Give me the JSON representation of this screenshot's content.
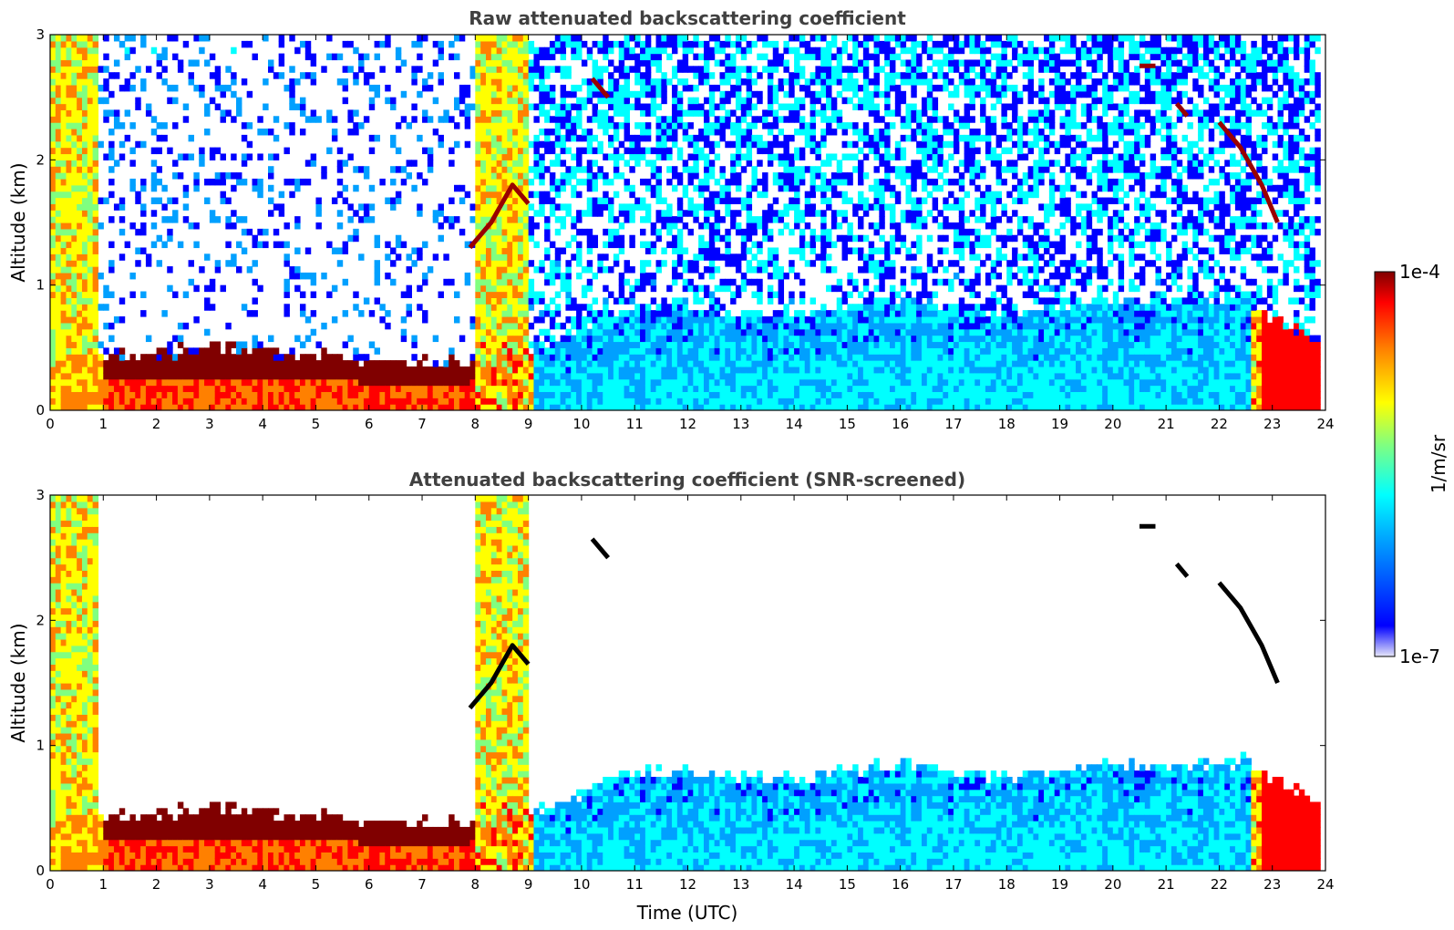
{
  "chart_data": [
    {
      "type": "heatmap",
      "title": "Raw attenuated backscattering coefficient",
      "xlabel": "",
      "ylabel": "Altitude (km)",
      "xlim": [
        0,
        24
      ],
      "ylim": [
        0,
        3
      ],
      "xticks": [
        "0",
        "1",
        "2",
        "3",
        "4",
        "5",
        "6",
        "7",
        "8",
        "9",
        "10",
        "11",
        "12",
        "13",
        "14",
        "15",
        "16",
        "17",
        "18",
        "19",
        "20",
        "21",
        "22",
        "23",
        "24"
      ],
      "yticks": [
        "0",
        "1",
        "2",
        "3"
      ],
      "screened": false,
      "boundary_layer_top_km": {
        "t": [
          0,
          0.7,
          1,
          2,
          3,
          4,
          5,
          6,
          7,
          7.9,
          8.2,
          9,
          10,
          10.5,
          11,
          12,
          13,
          14,
          15,
          16,
          17,
          18,
          19,
          20,
          21,
          22,
          22.5,
          23,
          23.8
        ],
        "z": [
          0.35,
          0.5,
          0.45,
          0.45,
          0.5,
          0.48,
          0.45,
          0.4,
          0.38,
          0.4,
          0.5,
          0.45,
          0.6,
          0.7,
          0.8,
          0.8,
          0.75,
          0.75,
          0.8,
          0.85,
          0.8,
          0.75,
          0.8,
          0.85,
          0.85,
          0.85,
          0.9,
          0.7,
          0.6
        ]
      },
      "cloud_layers": [
        {
          "t": [
            7.9,
            8.3,
            8.7,
            9.0
          ],
          "z": [
            1.3,
            1.5,
            1.8,
            1.65
          ]
        },
        {
          "t": [
            10.2,
            10.5
          ],
          "z": [
            2.65,
            2.5
          ]
        },
        {
          "t": [
            20.5,
            20.8
          ],
          "z": [
            2.75,
            2.75
          ]
        },
        {
          "t": [
            21.2,
            21.4
          ],
          "z": [
            2.45,
            2.35
          ]
        },
        {
          "t": [
            22.0,
            22.4,
            22.8,
            23.1
          ],
          "z": [
            2.3,
            2.1,
            1.8,
            1.5
          ]
        }
      ]
    },
    {
      "type": "heatmap",
      "title": "Attenuated backscattering coefficient (SNR-screened)",
      "xlabel": "Time (UTC)",
      "ylabel": "Altitude (km)",
      "xlim": [
        0,
        24
      ],
      "ylim": [
        0,
        3
      ],
      "xticks": [
        "0",
        "1",
        "2",
        "3",
        "4",
        "5",
        "6",
        "7",
        "8",
        "9",
        "10",
        "11",
        "12",
        "13",
        "14",
        "15",
        "16",
        "17",
        "18",
        "19",
        "20",
        "21",
        "22",
        "23",
        "24"
      ],
      "yticks": [
        "0",
        "1",
        "2",
        "3"
      ],
      "screened": true
    }
  ],
  "colorbar": {
    "label": "1/m/sr",
    "max_label": "1e-4",
    "min_label": "1e-7",
    "colormap": "jet",
    "colors": [
      "#e6e6f8",
      "#0000ff",
      "#00a0ff",
      "#00ffff",
      "#80ff80",
      "#ffff00",
      "#ff8000",
      "#ff0000",
      "#800000"
    ]
  }
}
